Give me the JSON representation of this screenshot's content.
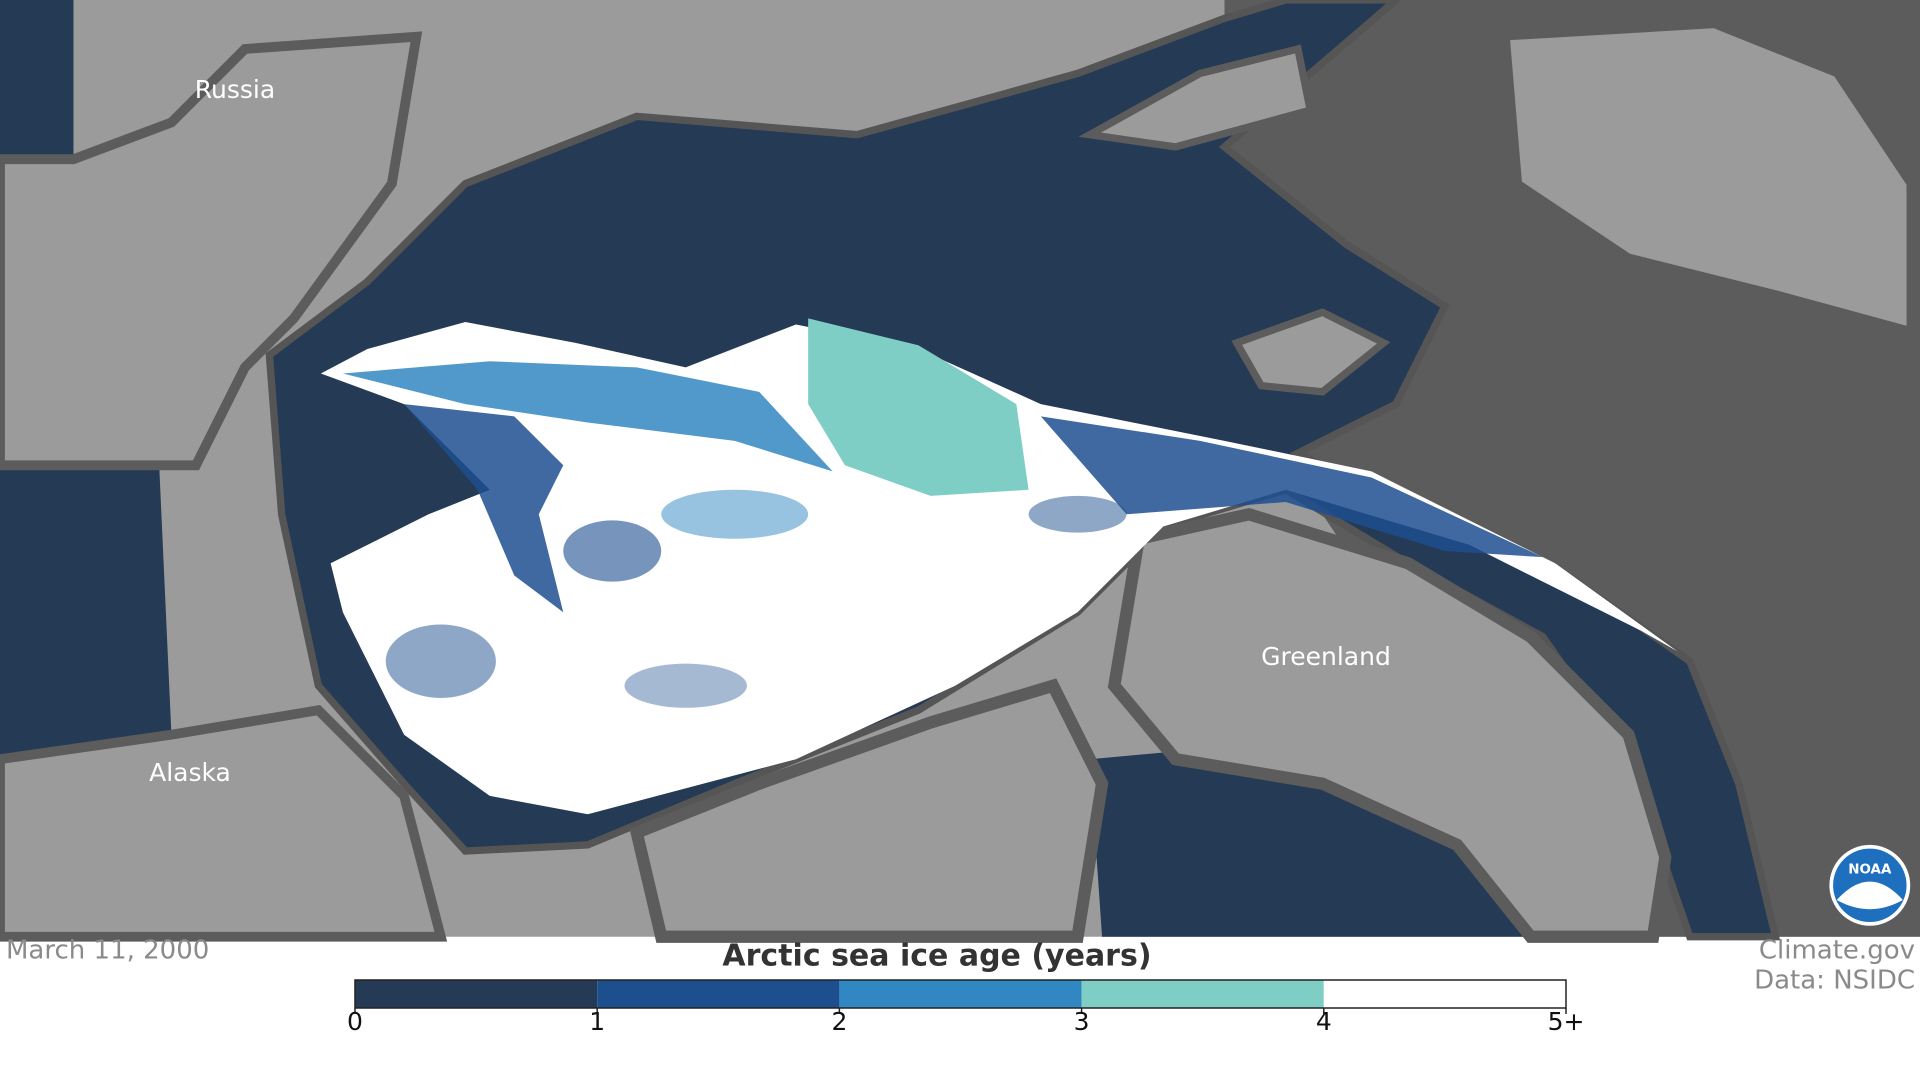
{
  "map": {
    "labels": [
      "Russia",
      "Alaska",
      "Greenland"
    ]
  },
  "date": "March 11, 2000",
  "legend": {
    "title": "Arctic sea ice age (years)",
    "ticks": [
      0,
      1,
      2,
      3,
      4,
      {
        "value": 5,
        "label": "5+"
      }
    ],
    "colors": [
      "#253a55",
      "#1d4f8f",
      "#3187c1",
      "#7fcec5",
      "#ffffff"
    ]
  },
  "credits": [
    "Climate.gov",
    "Data: NSIDC"
  ],
  "logo": "NOAA"
}
